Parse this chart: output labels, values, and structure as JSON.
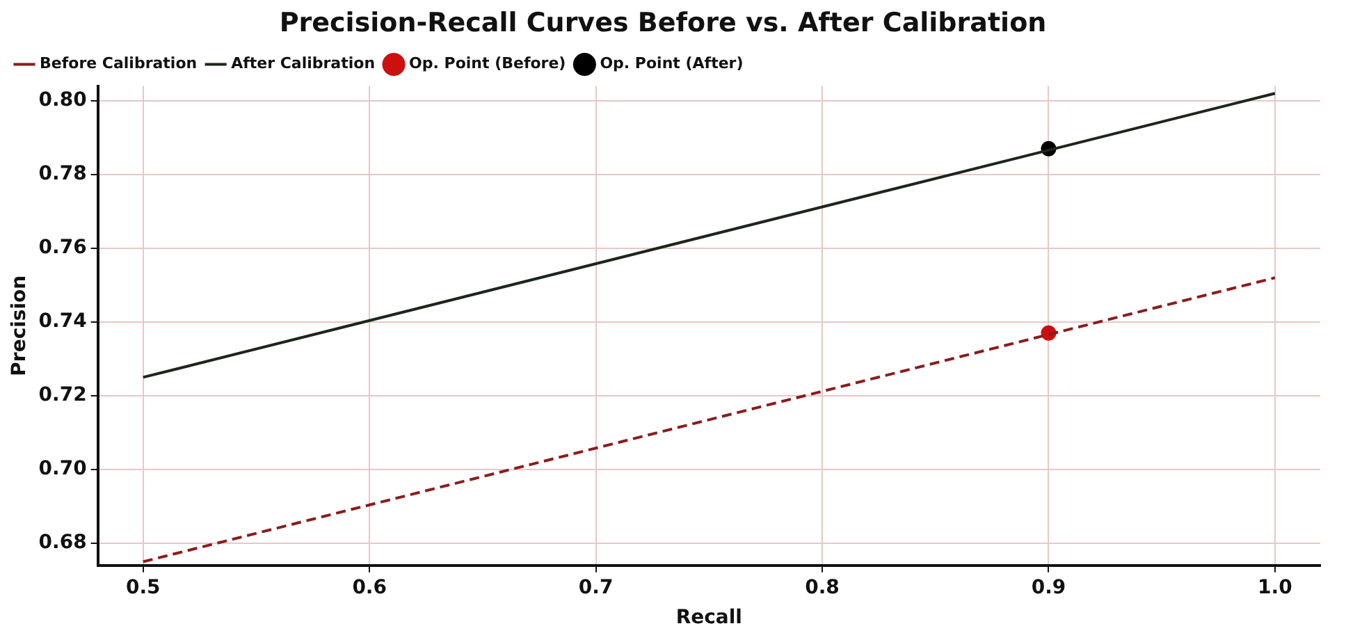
{
  "chart_data": {
    "type": "line",
    "title": "Precision-Recall Curves Before vs. After Calibration",
    "xlabel": "Recall",
    "ylabel": "Precision",
    "xlim": [
      0.48,
      1.02
    ],
    "xticks": [
      {
        "value": 0.5,
        "label": "0.5"
      },
      {
        "value": 0.6,
        "label": "0.6"
      },
      {
        "value": 0.7,
        "label": "0.7"
      },
      {
        "value": 0.8,
        "label": "0.8"
      },
      {
        "value": 0.9,
        "label": "0.9"
      },
      {
        "value": 1.0,
        "label": "1.0"
      }
    ],
    "ylim": [
      0.674,
      0.804
    ],
    "yticks": [
      {
        "value": 0.68,
        "label": "0.68"
      },
      {
        "value": 0.7,
        "label": "0.70"
      },
      {
        "value": 0.72,
        "label": "0.72"
      },
      {
        "value": 0.74,
        "label": "0.74"
      },
      {
        "value": 0.76,
        "label": "0.76"
      },
      {
        "value": 0.78,
        "label": "0.78"
      },
      {
        "value": 0.8,
        "label": "0.80"
      }
    ],
    "grid": true,
    "legend": "top left",
    "series": [
      {
        "name": "Before Calibration",
        "line_style": "dashed",
        "color": "#8b1c1c",
        "x": [
          0.5,
          1.0
        ],
        "values": [
          0.675,
          0.752
        ]
      },
      {
        "name": "After Calibration",
        "line_style": "solid",
        "color": "#1c261c",
        "x": [
          0.5,
          1.0
        ],
        "values": [
          0.725,
          0.802
        ]
      },
      {
        "name": "Op. Point (Before)",
        "type": "scatter",
        "marker": "circle",
        "color": "#cc1010",
        "x": [
          0.9
        ],
        "values": [
          0.737
        ]
      },
      {
        "name": "Op. Point (After)",
        "type": "scatter",
        "marker": "circle",
        "color": "#000000",
        "x": [
          0.9
        ],
        "values": [
          0.787
        ]
      }
    ]
  }
}
